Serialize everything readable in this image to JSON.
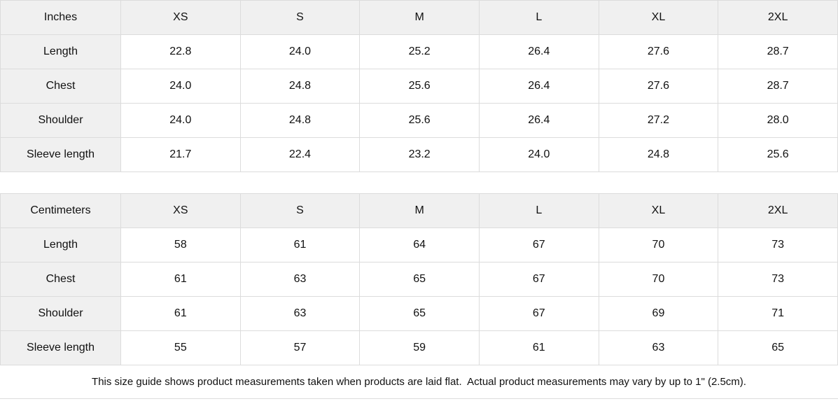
{
  "tables": [
    {
      "unit_label": "Inches",
      "columns": [
        "XS",
        "S",
        "M",
        "L",
        "XL",
        "2XL"
      ],
      "rows": [
        {
          "label": "Length",
          "values": [
            "22.8",
            "24.0",
            "25.2",
            "26.4",
            "27.6",
            "28.7"
          ]
        },
        {
          "label": "Chest",
          "values": [
            "24.0",
            "24.8",
            "25.6",
            "26.4",
            "27.6",
            "28.7"
          ]
        },
        {
          "label": "Shoulder",
          "values": [
            "24.0",
            "24.8",
            "25.6",
            "26.4",
            "27.2",
            "28.0"
          ]
        },
        {
          "label": "Sleeve length",
          "values": [
            "21.7",
            "22.4",
            "23.2",
            "24.0",
            "24.8",
            "25.6"
          ]
        }
      ]
    },
    {
      "unit_label": "Centimeters",
      "columns": [
        "XS",
        "S",
        "M",
        "L",
        "XL",
        "2XL"
      ],
      "rows": [
        {
          "label": "Length",
          "values": [
            "58",
            "61",
            "64",
            "67",
            "70",
            "73"
          ]
        },
        {
          "label": "Chest",
          "values": [
            "61",
            "63",
            "65",
            "67",
            "70",
            "73"
          ]
        },
        {
          "label": "Shoulder",
          "values": [
            "61",
            "63",
            "65",
            "67",
            "69",
            "71"
          ]
        },
        {
          "label": "Sleeve length",
          "values": [
            "55",
            "57",
            "59",
            "61",
            "63",
            "65"
          ]
        }
      ]
    }
  ],
  "footer": {
    "note": "This size guide shows product measurements taken when products are laid flat.  Actual product measurements may vary by up to 1\" (2.5cm)."
  },
  "colors": {
    "header_bg": "#f0f0f0",
    "border": "#dcdcdc",
    "text": "#111111",
    "background": "#ffffff"
  }
}
